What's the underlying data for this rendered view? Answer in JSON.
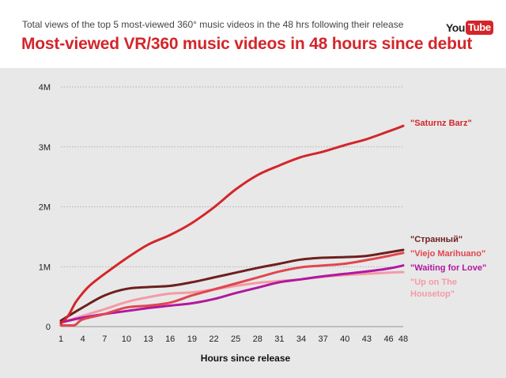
{
  "header": {
    "subtitle": "Total views of the top 5 most-viewed 360° music videos in the 48 hrs following their release",
    "title": "Most-viewed VR/360 music videos in 48 hours since debut",
    "logo_you": "You",
    "logo_tube": "Tube"
  },
  "colors": {
    "title": "#d3262b",
    "panel": "#e8e8e8",
    "logo_red": "#d3262b"
  },
  "chart_data": {
    "type": "line",
    "title": "Most-viewed VR/360 music videos in 48 hours since debut",
    "subtitle": "Total views of the top 5 most-viewed 360° music videos in the 48 hrs following their release",
    "xlabel": "Hours since release",
    "ylabel": "",
    "xlim": [
      1,
      48
    ],
    "ylim": [
      0,
      4000000
    ],
    "xticks": [
      1,
      4,
      7,
      10,
      13,
      16,
      19,
      22,
      25,
      28,
      31,
      34,
      37,
      40,
      43,
      46,
      48
    ],
    "xtick_labels": [
      "1",
      "4",
      "7",
      "10",
      "13",
      "16",
      "19",
      "22",
      "25",
      "28",
      "31",
      "34",
      "37",
      "40",
      "43",
      "46",
      "48"
    ],
    "yticks": [
      0,
      1000000,
      2000000,
      3000000,
      4000000
    ],
    "ytick_labels": [
      "0",
      "1M",
      "2M",
      "3M",
      "4M"
    ],
    "grid": "horizontal dotted",
    "legend": "direct labels at right end of lines",
    "series": [
      {
        "name": "\"Saturnz Barz\"",
        "color": "#d3262b",
        "x": [
          1,
          2,
          3,
          4,
          5,
          7,
          10,
          13,
          16,
          19,
          22,
          25,
          28,
          31,
          34,
          37,
          40,
          43,
          46,
          48
        ],
        "values": [
          50000,
          180000,
          400000,
          560000,
          690000,
          880000,
          1140000,
          1370000,
          1530000,
          1730000,
          1990000,
          2290000,
          2530000,
          2690000,
          2830000,
          2920000,
          3030000,
          3130000,
          3260000,
          3350000
        ]
      },
      {
        "name": "\"Странный\"",
        "color": "#6e1f1f",
        "x": [
          1,
          4,
          7,
          10,
          13,
          16,
          19,
          22,
          25,
          28,
          31,
          34,
          37,
          40,
          43,
          46,
          48
        ],
        "values": [
          100000,
          320000,
          520000,
          630000,
          660000,
          680000,
          740000,
          820000,
          900000,
          980000,
          1050000,
          1120000,
          1150000,
          1160000,
          1180000,
          1240000,
          1280000
        ]
      },
      {
        "name": "\"Viejo Marihuano\"",
        "color": "#e0464f",
        "x": [
          1,
          2,
          3,
          4,
          7,
          10,
          13,
          16,
          19,
          22,
          25,
          28,
          31,
          34,
          37,
          40,
          43,
          46,
          48
        ],
        "values": [
          20000,
          20000,
          30000,
          120000,
          210000,
          320000,
          350000,
          400000,
          520000,
          620000,
          720000,
          820000,
          920000,
          990000,
          1020000,
          1050000,
          1110000,
          1180000,
          1230000
        ]
      },
      {
        "name": "\"Waiting for Love\"",
        "color": "#b0189e",
        "x": [
          1,
          4,
          7,
          10,
          13,
          16,
          19,
          22,
          25,
          28,
          31,
          34,
          37,
          40,
          43,
          46,
          48
        ],
        "values": [
          70000,
          150000,
          210000,
          260000,
          310000,
          350000,
          390000,
          460000,
          560000,
          650000,
          740000,
          790000,
          840000,
          880000,
          920000,
          970000,
          1020000
        ]
      },
      {
        "name": "\"Up on The Housetop\"",
        "color": "#f59aa6",
        "x": [
          1,
          4,
          7,
          10,
          13,
          16,
          19,
          22,
          25,
          28,
          31,
          34,
          37,
          40,
          43,
          46,
          48
        ],
        "values": [
          60000,
          180000,
          290000,
          410000,
          490000,
          550000,
          570000,
          620000,
          680000,
          730000,
          760000,
          790000,
          830000,
          860000,
          880000,
          900000,
          910000
        ]
      }
    ],
    "end_labels": [
      {
        "lines": [
          "\"Saturnz Barz\""
        ],
        "color": "#d3262b"
      },
      {
        "lines": [
          "\"Странный\""
        ],
        "color": "#6e1f1f"
      },
      {
        "lines": [
          "\"Viejo Marihuano\""
        ],
        "color": "#e0464f"
      },
      {
        "lines": [
          "\"Waiting for Love\""
        ],
        "color": "#b0189e"
      },
      {
        "lines": [
          "\"Up on The",
          "Housetop\""
        ],
        "color": "#f59aa6"
      }
    ]
  }
}
